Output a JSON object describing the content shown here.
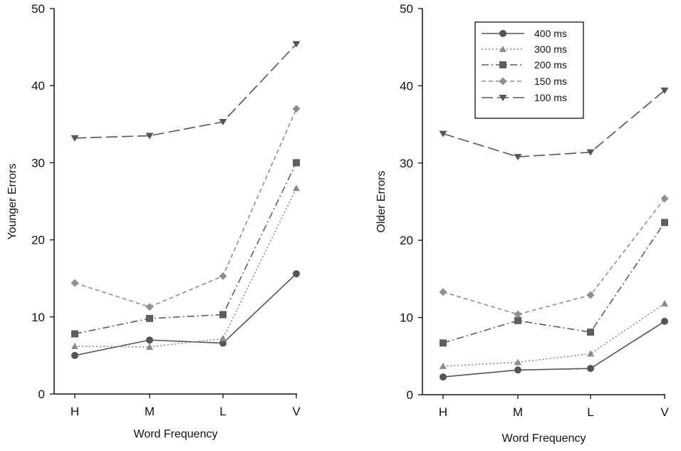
{
  "chart_data": [
    {
      "type": "line",
      "xlabel": "Word Frequency",
      "ylabel": "Younger Errors",
      "categories": [
        "H",
        "M",
        "L",
        "V"
      ],
      "ylim": [
        0,
        50
      ],
      "yticks": [
        "0",
        "10",
        "20",
        "30",
        "40",
        "50"
      ],
      "series": [
        {
          "name": "400 ms",
          "values": [
            5.0,
            7.0,
            6.6,
            15.6
          ],
          "marker": "circle",
          "dash": "solid",
          "color": "#555555"
        },
        {
          "name": "300 ms",
          "values": [
            6.2,
            6.1,
            7.2,
            26.7
          ],
          "marker": "triangle-up",
          "dash": "dotted",
          "color": "#8a8a8a"
        },
        {
          "name": "200 ms",
          "values": [
            7.8,
            9.8,
            10.3,
            30.0
          ],
          "marker": "square",
          "dash": "dashdot",
          "color": "#5e5e5e"
        },
        {
          "name": "150 ms",
          "values": [
            14.4,
            11.3,
            15.3,
            37.0
          ],
          "marker": "diamond",
          "dash": "dashed",
          "color": "#8f8f8f"
        },
        {
          "name": "100 ms",
          "values": [
            33.2,
            33.5,
            35.3,
            45.4
          ],
          "marker": "triangle-down",
          "dash": "longdash",
          "color": "#555555"
        }
      ],
      "legend": "none",
      "grid": false
    },
    {
      "type": "line",
      "xlabel": "Word Frequency",
      "ylabel": "Older Errors",
      "categories": [
        "H",
        "M",
        "L",
        "V"
      ],
      "ylim": [
        0,
        50
      ],
      "yticks": [
        "0",
        "10",
        "20",
        "30",
        "40",
        "50"
      ],
      "series": [
        {
          "name": "400 ms",
          "values": [
            2.3,
            3.2,
            3.4,
            9.5
          ],
          "marker": "circle",
          "dash": "solid",
          "color": "#555555"
        },
        {
          "name": "300 ms",
          "values": [
            3.7,
            4.2,
            5.3,
            11.8
          ],
          "marker": "triangle-up",
          "dash": "dotted",
          "color": "#8a8a8a"
        },
        {
          "name": "200 ms",
          "values": [
            6.7,
            9.6,
            8.1,
            22.3
          ],
          "marker": "square",
          "dash": "dashdot",
          "color": "#5e5e5e"
        },
        {
          "name": "150 ms",
          "values": [
            13.3,
            10.4,
            12.9,
            25.4
          ],
          "marker": "diamond",
          "dash": "dashed",
          "color": "#8f8f8f"
        },
        {
          "name": "100 ms",
          "values": [
            33.8,
            30.8,
            31.4,
            39.4
          ],
          "marker": "triangle-down",
          "dash": "longdash",
          "color": "#555555"
        }
      ],
      "legend": "top-right",
      "grid": false
    }
  ]
}
